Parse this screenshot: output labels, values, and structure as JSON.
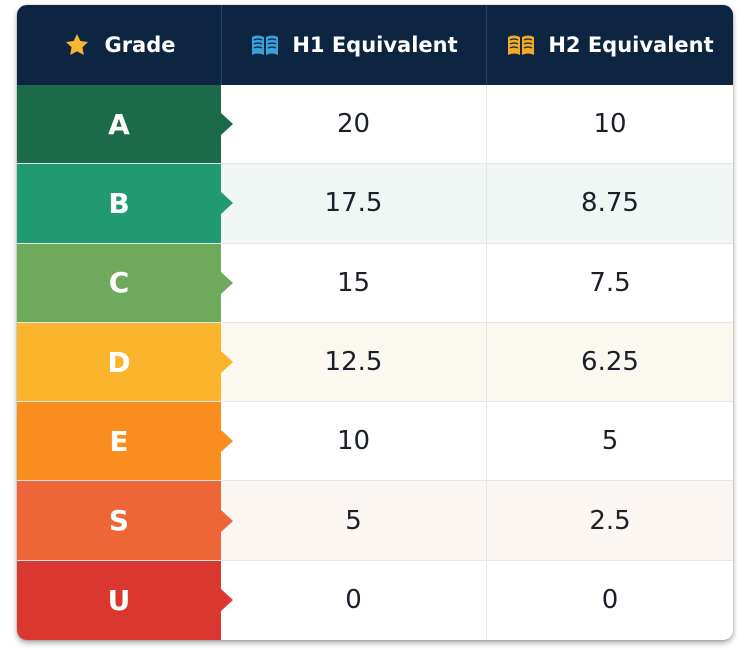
{
  "table": {
    "headers": {
      "grade": "Grade",
      "h1": "H1 Equivalent",
      "h2": "H2 Equivalent"
    },
    "icons": {
      "grade": "star-icon",
      "h1": "open-book-icon",
      "h2": "open-book-icon"
    },
    "colors": {
      "header_bg": "#0e2541",
      "star": "#f5b82e",
      "h1_book": "#3aa0d8",
      "h2_book": "#f0a928"
    },
    "rows": [
      {
        "grade": "A",
        "h1": "20",
        "h2": "10",
        "color": "#1b6a4a",
        "tint": "#ffffff"
      },
      {
        "grade": "B",
        "h1": "17.5",
        "h2": "8.75",
        "color": "#229a71",
        "tint": "#f0f6f4"
      },
      {
        "grade": "C",
        "h1": "15",
        "h2": "7.5",
        "color": "#6faa5c",
        "tint": "#ffffff"
      },
      {
        "grade": "D",
        "h1": "12.5",
        "h2": "6.25",
        "color": "#fbb52c",
        "tint": "#fbf8ef"
      },
      {
        "grade": "E",
        "h1": "10",
        "h2": "5",
        "color": "#f98d1e",
        "tint": "#ffffff"
      },
      {
        "grade": "S",
        "h1": "5",
        "h2": "2.5",
        "color": "#ee6638",
        "tint": "#fcf6f2"
      },
      {
        "grade": "U",
        "h1": "0",
        "h2": "0",
        "color": "#d9372f",
        "tint": "#ffffff"
      }
    ]
  }
}
